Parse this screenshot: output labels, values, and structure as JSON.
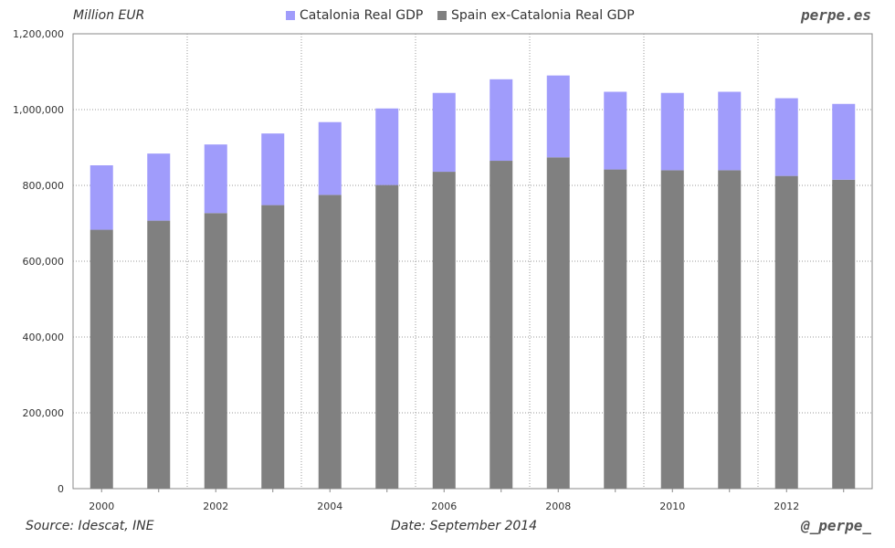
{
  "header": {
    "unit_label": "Million EUR",
    "brand": "perpe.es"
  },
  "footer": {
    "source": "Source: Idescat, INE",
    "date": "Date: September 2014",
    "handle": "@_perpe_"
  },
  "colors": {
    "catalonia": "#a09cfb",
    "spain_ex_catalonia": "#808080",
    "grid": "#9a9a9a"
  },
  "chart_data": {
    "type": "bar",
    "stacked": true,
    "categories": [
      "2000",
      "2001",
      "2002",
      "2003",
      "2004",
      "2005",
      "2006",
      "2007",
      "2008",
      "2009",
      "2010",
      "2011",
      "2012",
      "2013"
    ],
    "x_tick_labels": [
      "2000",
      "",
      "2002",
      "",
      "2004",
      "",
      "2006",
      "",
      "2008",
      "",
      "2010",
      "",
      "2012",
      ""
    ],
    "series": [
      {
        "name": "Spain ex-Catalonia Real GDP",
        "values": [
          683000,
          707000,
          727000,
          748000,
          775000,
          801000,
          836000,
          865000,
          874000,
          842000,
          840000,
          840000,
          825000,
          815000
        ]
      },
      {
        "name": "Catalonia Real GDP",
        "values": [
          170000,
          177000,
          181000,
          189000,
          192000,
          202000,
          208000,
          215000,
          216000,
          205000,
          204000,
          207000,
          205000,
          200000
        ]
      }
    ],
    "legend": [
      "Catalonia Real GDP",
      "Spain ex-Catalonia Real GDP"
    ],
    "legend_position": "top",
    "ylim": [
      0,
      1200000
    ],
    "y_ticks": [
      0,
      200000,
      400000,
      600000,
      800000,
      1000000,
      1200000
    ],
    "y_tick_labels": [
      "0",
      "200,000",
      "400,000",
      "600,000",
      "800,000",
      "1,000,000",
      "1,200,000"
    ],
    "grid": true
  }
}
